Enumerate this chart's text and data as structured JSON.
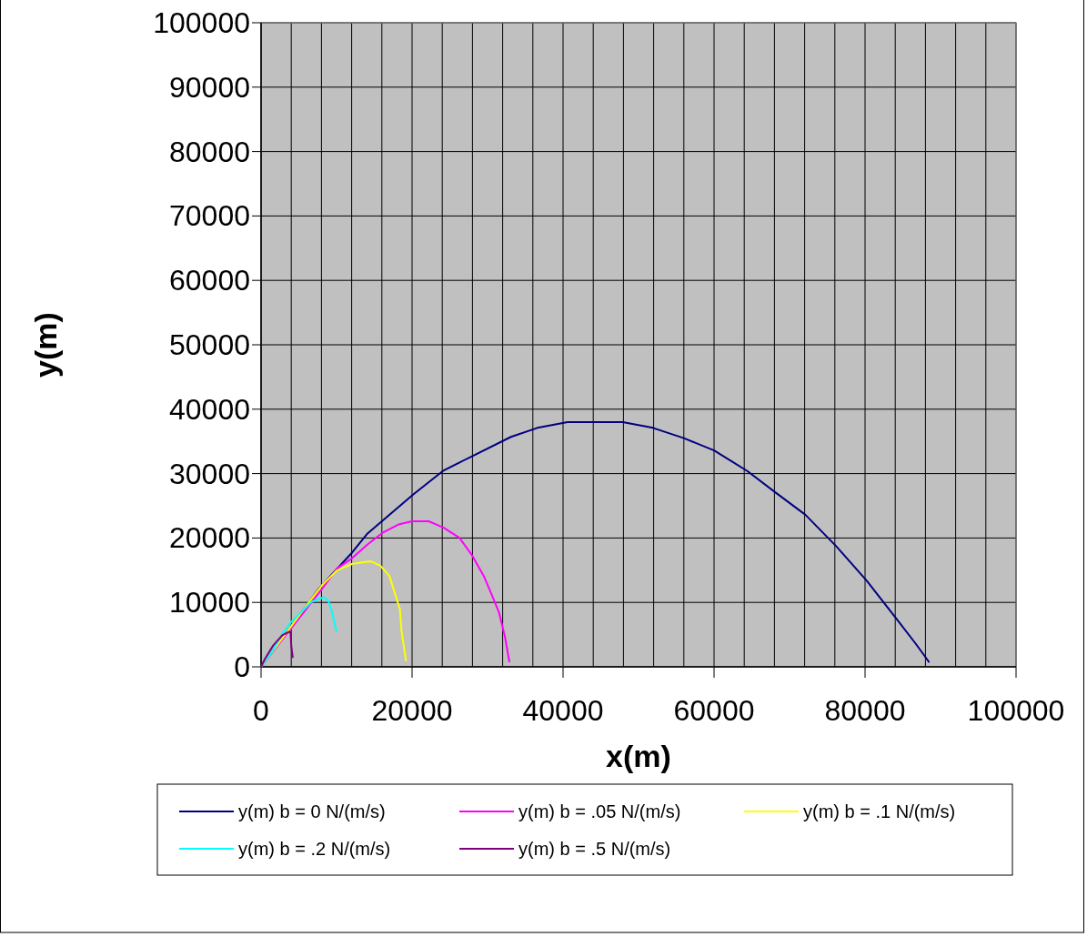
{
  "chart_data": {
    "type": "line",
    "xlabel": "x(m)",
    "ylabel": "y(m)",
    "xlim": [
      0,
      100000
    ],
    "ylim": [
      0,
      100000
    ],
    "xticks": [
      0,
      {
        "value": 4000,
        "label": null
      },
      {
        "value": 8000,
        "label": null
      },
      {
        "value": 12000,
        "label": null
      },
      {
        "value": 16000,
        "label": null
      },
      20000,
      {
        "value": 24000,
        "label": null
      },
      {
        "value": 28000,
        "label": null
      },
      {
        "value": 32000,
        "label": null
      },
      {
        "value": 36000,
        "label": null
      },
      40000,
      {
        "value": 44000,
        "label": null
      },
      {
        "value": 48000,
        "label": null
      },
      {
        "value": 52000,
        "label": null
      },
      {
        "value": 56000,
        "label": null
      },
      60000,
      {
        "value": 64000,
        "label": null
      },
      {
        "value": 68000,
        "label": null
      },
      {
        "value": 72000,
        "label": null
      },
      {
        "value": 76000,
        "label": null
      },
      80000,
      {
        "value": 84000,
        "label": null
      },
      {
        "value": 88000,
        "label": null
      },
      {
        "value": 92000,
        "label": null
      },
      {
        "value": 96000,
        "label": null
      },
      100000
    ],
    "yticks": [
      0,
      10000,
      20000,
      30000,
      40000,
      50000,
      60000,
      70000,
      80000,
      90000,
      100000
    ],
    "grid": true,
    "legend": "bottom",
    "marker": "none",
    "line_style": "solid",
    "series": [
      {
        "name": "y(m) b = 0 N/(m/s)",
        "color": "#000080",
        "x": [
          0,
          7700,
          12100,
          14100,
          16600,
          20200,
          24200,
          28300,
          33100,
          36600,
          40600,
          47900,
          51900,
          56000,
          60000,
          64400,
          68100,
          72100,
          76200,
          80200,
          84200,
          86700,
          88500
        ],
        "values": [
          0,
          12200,
          17800,
          20700,
          23200,
          26800,
          30500,
          32900,
          35700,
          37100,
          38000,
          38000,
          37100,
          35500,
          33600,
          30400,
          27100,
          23600,
          18700,
          13400,
          7400,
          3600,
          700
        ]
      },
      {
        "name": "y(m) b = .05 N/(m/s)",
        "color": "#ff00ff",
        "x": [
          0,
          6000,
          8000,
          10100,
          12100,
          14100,
          16200,
          18200,
          20000,
          22200,
          24200,
          26300,
          27900,
          29500,
          30700,
          31500,
          32300,
          32900
        ],
        "values": [
          0,
          9000,
          12000,
          15300,
          16900,
          19000,
          20900,
          22100,
          22600,
          22600,
          21600,
          20000,
          17400,
          14100,
          10800,
          8500,
          4700,
          700
        ]
      },
      {
        "name": "y(m) b = .1 N/(m/s)",
        "color": "#ffff00",
        "x": [
          0,
          3000,
          6500,
          8100,
          10100,
          12100,
          14500,
          15800,
          17000,
          18400,
          18600,
          19200
        ],
        "values": [
          0,
          4700,
          10300,
          12700,
          15000,
          16000,
          16400,
          15700,
          14100,
          8900,
          5600,
          900
        ]
      },
      {
        "name": "y(m) b = .2 N/(m/s)",
        "color": "#00ffff",
        "x": [
          0,
          1500,
          2800,
          4000,
          5500,
          6700,
          8300,
          8900,
          9300,
          9700,
          10000
        ],
        "values": [
          0,
          2400,
          5100,
          7000,
          8700,
          10100,
          10800,
          10300,
          8900,
          7000,
          5400
        ]
      },
      {
        "name": "y(m) b = .5 N/(m/s)",
        "color": "#800080",
        "x": [
          0,
          500,
          1600,
          2800,
          3600,
          3900,
          4000,
          4200
        ],
        "values": [
          0,
          1200,
          3300,
          4900,
          5400,
          5400,
          3300,
          1400
        ]
      }
    ]
  }
}
